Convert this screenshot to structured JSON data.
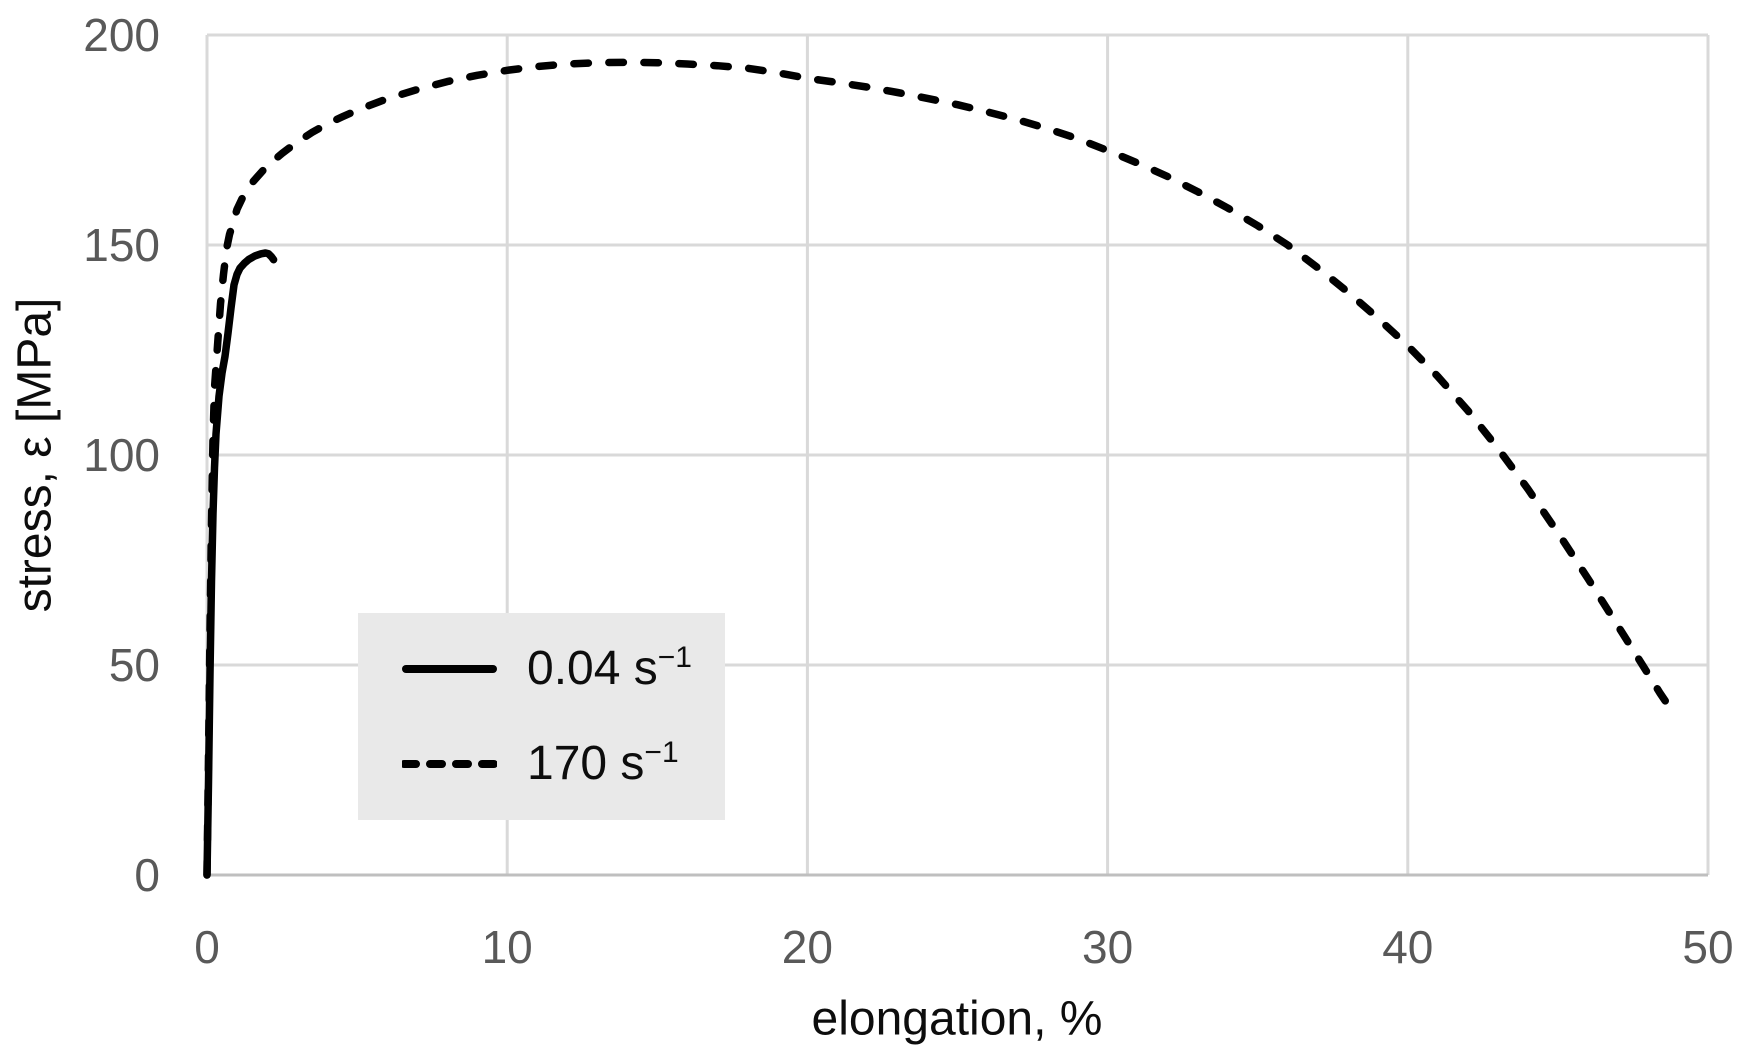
{
  "axes": {
    "x_title": "elongation, %",
    "y_title": "stress, ε [MPa]",
    "tick_label_color": "#595959",
    "title_color": "#0d0d0d",
    "gridline_color": "#d9d9d9",
    "axis_line_color": "#bfbfbf"
  },
  "legend": {
    "background": "#e9e9e9",
    "items": [
      {
        "label": "0.04 s⁻¹",
        "base": "0.04 s",
        "sup": "−1",
        "line_style": "solid"
      },
      {
        "label": "170 s⁻¹",
        "base": "170 s",
        "sup": "−1",
        "line_style": "dashed"
      }
    ]
  },
  "chart_data": {
    "type": "line",
    "title": "",
    "xlabel": "elongation, %",
    "ylabel": "stress, ε [MPa]",
    "xlim": [
      0,
      50
    ],
    "ylim": [
      0,
      200
    ],
    "x_ticks": [
      0,
      10,
      20,
      30,
      40,
      50
    ],
    "y_ticks": [
      0,
      50,
      100,
      150,
      200
    ],
    "grid": true,
    "legend_position": "inside-lower-left",
    "series_color": "#000000",
    "series": [
      {
        "name": "0.04 s⁻¹",
        "line_style": "solid",
        "points": [
          [
            0,
            0
          ],
          [
            0.05,
            22
          ],
          [
            0.1,
            48
          ],
          [
            0.15,
            70
          ],
          [
            0.2,
            86
          ],
          [
            0.25,
            97
          ],
          [
            0.3,
            105
          ],
          [
            0.4,
            114
          ],
          [
            0.5,
            119.5
          ],
          [
            0.6,
            123.5
          ],
          [
            0.7,
            129
          ],
          [
            0.8,
            135
          ],
          [
            0.9,
            140.5
          ],
          [
            1.0,
            143
          ],
          [
            1.1,
            144.5
          ],
          [
            1.25,
            145.7
          ],
          [
            1.4,
            146.6
          ],
          [
            1.6,
            147.4
          ],
          [
            1.8,
            147.9
          ],
          [
            1.95,
            148.1
          ],
          [
            2.05,
            147.9
          ],
          [
            2.15,
            147.2
          ],
          [
            2.22,
            146.5
          ]
        ]
      },
      {
        "name": "170 s⁻¹",
        "line_style": "dashed",
        "points": [
          [
            0,
            0
          ],
          [
            0.05,
            28
          ],
          [
            0.1,
            58
          ],
          [
            0.15,
            84
          ],
          [
            0.2,
            104
          ],
          [
            0.25,
            116
          ],
          [
            0.35,
            126
          ],
          [
            0.45,
            136
          ],
          [
            0.55,
            143
          ],
          [
            0.65,
            149
          ],
          [
            0.75,
            152.5
          ],
          [
            0.9,
            156
          ],
          [
            1.0,
            158.5
          ],
          [
            1.2,
            161.5
          ],
          [
            1.5,
            164.8
          ],
          [
            2.0,
            168.8
          ],
          [
            2.5,
            171.8
          ],
          [
            3.0,
            174.5
          ],
          [
            3.5,
            176.8
          ],
          [
            4.0,
            178.8
          ],
          [
            4.5,
            180.5
          ],
          [
            5.0,
            182.1
          ],
          [
            6.0,
            184.8
          ],
          [
            7.0,
            187.0
          ],
          [
            8.0,
            188.9
          ],
          [
            9.0,
            190.4
          ],
          [
            10,
            191.6
          ],
          [
            11,
            192.5
          ],
          [
            12,
            193.1
          ],
          [
            13,
            193.4
          ],
          [
            14,
            193.5
          ],
          [
            15,
            193.4
          ],
          [
            16,
            193.1
          ],
          [
            17,
            192.7
          ],
          [
            18,
            192.1
          ],
          [
            19,
            191.0
          ],
          [
            20,
            189.7
          ],
          [
            21,
            188.7
          ],
          [
            22,
            187.6
          ],
          [
            23,
            186.3
          ],
          [
            24,
            184.9
          ],
          [
            25,
            183.4
          ],
          [
            26,
            181.7
          ],
          [
            27,
            179.8
          ],
          [
            28,
            177.7
          ],
          [
            29,
            175.3
          ],
          [
            30,
            172.5
          ],
          [
            31,
            169.5
          ],
          [
            32,
            166.3
          ],
          [
            33,
            162.7
          ],
          [
            34,
            158.8
          ],
          [
            35,
            154.6
          ],
          [
            36,
            150.0
          ],
          [
            37,
            144.6
          ],
          [
            38,
            138.8
          ],
          [
            39,
            132.6
          ],
          [
            40,
            126.0
          ],
          [
            41,
            118.7
          ],
          [
            42,
            110.6
          ],
          [
            43,
            101.6
          ],
          [
            44,
            91.9
          ],
          [
            45,
            81.5
          ],
          [
            46,
            70.6
          ],
          [
            47,
            59.3
          ],
          [
            47.8,
            50.2
          ],
          [
            48.4,
            43.3
          ],
          [
            48.9,
            38.0
          ]
        ]
      }
    ]
  }
}
